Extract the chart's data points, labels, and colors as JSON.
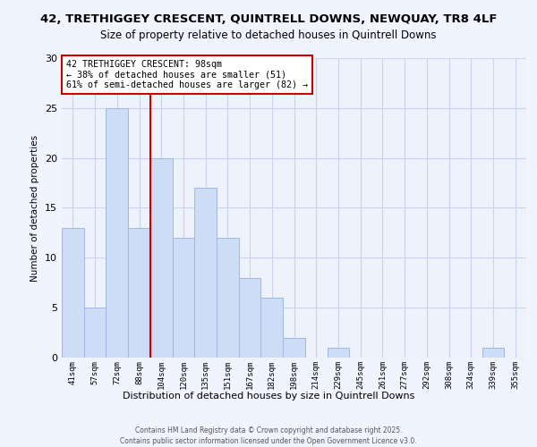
{
  "title1": "42, TRETHIGGEY CRESCENT, QUINTRELL DOWNS, NEWQUAY, TR8 4LF",
  "title2": "Size of property relative to detached houses in Quintrell Downs",
  "xlabel": "Distribution of detached houses by size in Quintrell Downs",
  "ylabel": "Number of detached properties",
  "bin_labels": [
    "41sqm",
    "57sqm",
    "72sqm",
    "88sqm",
    "104sqm",
    "120sqm",
    "135sqm",
    "151sqm",
    "167sqm",
    "182sqm",
    "198sqm",
    "214sqm",
    "229sqm",
    "245sqm",
    "261sqm",
    "277sqm",
    "292sqm",
    "308sqm",
    "324sqm",
    "339sqm",
    "355sqm"
  ],
  "bar_heights": [
    13,
    5,
    25,
    13,
    20,
    12,
    17,
    12,
    8,
    6,
    2,
    0,
    1,
    0,
    0,
    0,
    0,
    0,
    0,
    1,
    0
  ],
  "bar_color": "#ccddf5",
  "bar_edge_color": "#a0b8e0",
  "vline_x_bar": 3,
  "vline_color": "#cc0000",
  "annotation_line1": "42 TRETHIGGEY CRESCENT: 98sqm",
  "annotation_line2": "← 38% of detached houses are smaller (51)",
  "annotation_line3": "61% of semi-detached houses are larger (82) →",
  "ylim": [
    0,
    30
  ],
  "yticks": [
    0,
    5,
    10,
    15,
    20,
    25,
    30
  ],
  "bg_color": "#f0f4ff",
  "plot_bg_color": "#eef2fc",
  "grid_color": "#c8d4ec",
  "footer1": "Contains HM Land Registry data © Crown copyright and database right 2025.",
  "footer2": "Contains public sector information licensed under the Open Government Licence v3.0."
}
